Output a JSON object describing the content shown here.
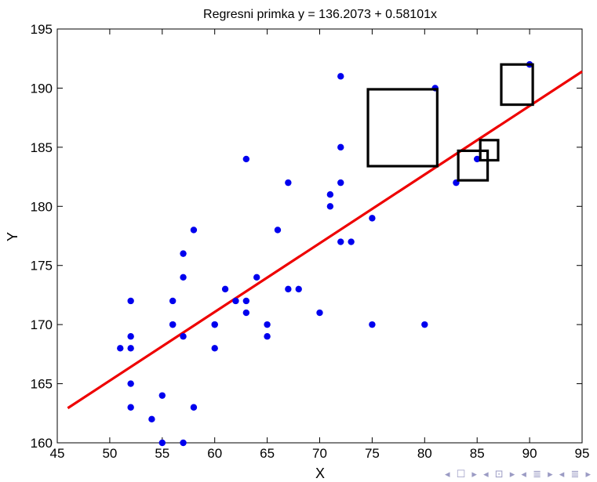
{
  "chart_data": {
    "type": "scatter",
    "title": "Regresni primka y = 136.2073 + 0.58101x",
    "xlabel": "X",
    "ylabel": "Y",
    "xlim": [
      45,
      95
    ],
    "ylim": [
      160,
      195
    ],
    "xticks": [
      45,
      50,
      55,
      60,
      65,
      70,
      75,
      80,
      85,
      90,
      95
    ],
    "yticks": [
      160,
      165,
      170,
      175,
      180,
      185,
      190,
      195
    ],
    "grid": false,
    "legend": "none",
    "colors": {
      "points": "#0000ee",
      "line": "#ee0000",
      "boxes": "#000000"
    },
    "series": [
      {
        "marker": "dot",
        "points": [
          [
            51,
            168
          ],
          [
            52,
            168
          ],
          [
            52,
            169
          ],
          [
            52,
            172
          ],
          [
            52,
            165
          ],
          [
            52,
            163
          ],
          [
            54,
            162
          ],
          [
            55,
            164
          ],
          [
            55,
            160
          ],
          [
            56,
            170
          ],
          [
            56,
            170
          ],
          [
            56,
            172
          ],
          [
            57,
            176
          ],
          [
            57,
            174
          ],
          [
            57,
            169
          ],
          [
            57,
            160
          ],
          [
            58,
            178
          ],
          [
            58,
            163
          ],
          [
            60,
            170
          ],
          [
            60,
            170
          ],
          [
            60,
            168
          ],
          [
            61,
            173
          ],
          [
            62,
            172
          ],
          [
            63,
            184
          ],
          [
            63,
            172
          ],
          [
            63,
            171
          ],
          [
            64,
            174
          ],
          [
            65,
            170
          ],
          [
            65,
            169
          ],
          [
            66,
            178
          ],
          [
            67,
            182
          ],
          [
            67,
            173
          ],
          [
            68,
            173
          ],
          [
            70,
            171
          ],
          [
            71,
            181
          ],
          [
            71,
            180
          ],
          [
            72,
            191
          ],
          [
            72,
            185
          ],
          [
            72,
            182
          ],
          [
            72,
            177
          ],
          [
            73,
            177
          ],
          [
            75,
            179
          ],
          [
            75,
            170
          ],
          [
            80,
            170
          ],
          [
            81,
            190
          ],
          [
            83,
            182
          ],
          [
            85,
            184
          ],
          [
            90,
            192
          ]
        ]
      }
    ],
    "regression_line": {
      "intercept": 136.2073,
      "slope": 0.58101,
      "x_range": [
        46,
        95
      ]
    },
    "boxes": [
      {
        "x": [
          74.6,
          81.2
        ],
        "y": [
          183.4,
          189.9
        ]
      },
      {
        "x": [
          83.2,
          86.0
        ],
        "y": [
          182.2,
          184.7
        ]
      },
      {
        "x": [
          85.3,
          87.0
        ],
        "y": [
          183.9,
          185.6
        ]
      },
      {
        "x": [
          87.3,
          90.3
        ],
        "y": [
          188.6,
          192.0
        ]
      }
    ]
  },
  "nav_icons": [
    "slide-prev-icon",
    "frame-prev-icon",
    "section-prev-icon",
    "subsection-prev-icon"
  ]
}
